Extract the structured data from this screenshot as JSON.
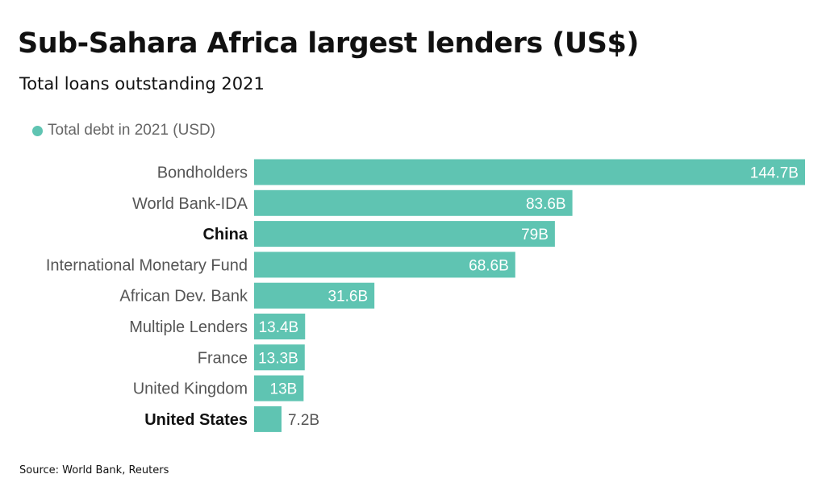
{
  "title": "Sub-Sahara Africa largest lenders (US$)",
  "subtitle": "Total loans outstanding 2021",
  "legend_label": "Total debt in 2021 (USD)",
  "source": "Source: World Bank, Reuters",
  "colors": {
    "bar": "#5fc4b2",
    "label_text": "#555555",
    "bold_label_text": "#111111",
    "value_inside": "#ffffff",
    "value_outside": "#555555"
  },
  "chart_data": {
    "type": "bar",
    "orientation": "horizontal",
    "categories": [
      "Bondholders",
      "World Bank-IDA",
      "China",
      "International Monetary Fund",
      "African Dev. Bank",
      "Multiple Lenders",
      "France",
      "United Kingdom",
      "United States"
    ],
    "bold_categories": [
      "China",
      "United States"
    ],
    "series": [
      {
        "name": "Total debt in 2021 (USD)",
        "values": [
          144.7,
          83.6,
          79,
          68.6,
          31.6,
          13.4,
          13.3,
          13,
          7.2
        ],
        "data_labels": [
          "144.7B",
          "83.6B",
          "79B",
          "68.6B",
          "31.6B",
          "13.4B",
          "13.3B",
          "13B",
          "7.2B"
        ]
      }
    ],
    "xlim": [
      0,
      144.7
    ],
    "legend": "top-left",
    "grid": false
  }
}
